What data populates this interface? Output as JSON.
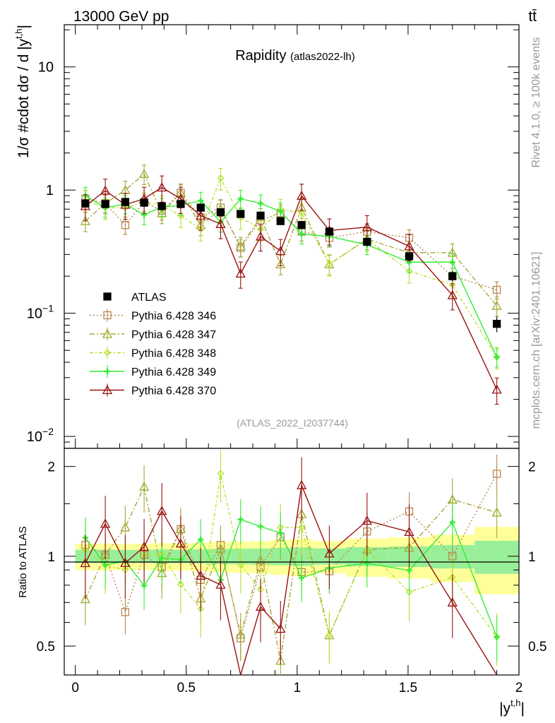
{
  "header": {
    "left": "13000 GeV pp",
    "right": "tt̄"
  },
  "side": {
    "rivet": "Rivet 4.1.0, ≥ 100k events",
    "mcplots": "mcplots.cern.ch [arXiv:2401.10621]"
  },
  "colors": {
    "ATLAS": "#000000",
    "346": "#b8874f",
    "347": "#a3a832",
    "348": "#b5e12e",
    "349": "#33ee33",
    "370": "#991111"
  },
  "chart_data": {
    "type": "line",
    "title": "Rapidity",
    "subtitle": "(atlas2022-lh)",
    "analysis": "(ATLAS_2022_I2037744)",
    "ylabel": "1/σ #cdot dσ / d |y",
    "ylabel_sup": "t,h",
    "ylabel_close": "|",
    "xlabel": "|y",
    "xlabel_sup": "t,h",
    "xlabel_close": "|",
    "ratio_ylabel": "Ratio to ATLAS",
    "xlim": [
      -0.05,
      2.0
    ],
    "ylim": [
      0.008,
      22
    ],
    "yscale": "log",
    "ratio_ylim": [
      0.4,
      2.3
    ],
    "x_ticks": [
      "0",
      "0.5",
      "1",
      "1.5",
      "2"
    ],
    "y_ticks": [
      {
        "base": "10",
        "exp": "−2"
      },
      {
        "base": "10",
        "exp": "−1"
      },
      {
        "base": "1",
        "exp": ""
      },
      {
        "base": "10",
        "exp": ""
      }
    ],
    "ratio_ticks": [
      "0.5",
      "1",
      "2"
    ],
    "bins": [
      0.0,
      0.09,
      0.18,
      0.27,
      0.35,
      0.43,
      0.52,
      0.61,
      0.7,
      0.79,
      0.88,
      0.97,
      1.07,
      1.22,
      1.41,
      1.6,
      1.8,
      2.0
    ],
    "x": [
      0.045,
      0.135,
      0.225,
      0.31,
      0.39,
      0.475,
      0.565,
      0.655,
      0.745,
      0.835,
      0.925,
      1.02,
      1.145,
      1.315,
      1.505,
      1.7,
      1.9
    ],
    "data": {
      "name": "ATLAS",
      "values": [
        0.78,
        0.77,
        0.8,
        0.79,
        0.74,
        0.77,
        0.72,
        0.66,
        0.64,
        0.62,
        0.56,
        0.52,
        0.46,
        0.38,
        0.29,
        0.2,
        0.082
      ],
      "errors": [
        0.04,
        0.04,
        0.04,
        0.04,
        0.04,
        0.04,
        0.04,
        0.04,
        0.04,
        0.04,
        0.04,
        0.04,
        0.03,
        0.03,
        0.025,
        0.02,
        0.012
      ]
    },
    "series": [
      {
        "name": "Pythia 6.428 346",
        "key": "346",
        "marker": "square",
        "dash": "2,3",
        "values": [
          0.85,
          0.78,
          0.52,
          0.8,
          0.68,
          0.95,
          0.6,
          0.72,
          0.34,
          0.57,
          0.65,
          0.46,
          0.41,
          0.46,
          0.41,
          0.2,
          0.155
        ],
        "err_frac": 0.16
      },
      {
        "name": "Pythia 6.428 347",
        "key": "347",
        "marker": "triangle",
        "dash": "7,3,2,3",
        "values": [
          0.56,
          0.78,
          1.0,
          1.35,
          0.65,
          0.95,
          0.52,
          0.7,
          0.35,
          0.6,
          0.25,
          0.72,
          0.25,
          0.4,
          0.31,
          0.31,
          0.115
        ],
        "err_frac": 0.18
      },
      {
        "name": "Pythia 6.428 348",
        "key": "348",
        "marker": "diamond",
        "dash": "5,3,2,3",
        "values": [
          0.82,
          0.72,
          0.72,
          0.8,
          0.75,
          0.62,
          0.48,
          1.25,
          0.6,
          0.48,
          0.7,
          0.65,
          0.25,
          0.4,
          0.22,
          0.17,
          0.044
        ],
        "err_frac": 0.2
      },
      {
        "name": "Pythia 6.428 349",
        "key": "349",
        "marker": "cross",
        "dash": "",
        "values": [
          0.9,
          0.72,
          0.77,
          0.63,
          0.73,
          0.75,
          0.82,
          0.55,
          0.85,
          0.78,
          0.67,
          0.44,
          0.42,
          0.36,
          0.26,
          0.26,
          0.044
        ],
        "err_frac": 0.17
      },
      {
        "name": "Pythia 6.428 370",
        "key": "370",
        "marker": "triangle",
        "dash": "",
        "values": [
          0.74,
          0.99,
          0.76,
          0.85,
          1.05,
          0.85,
          0.62,
          0.53,
          0.21,
          0.42,
          0.32,
          0.9,
          0.47,
          0.5,
          0.35,
          0.14,
          0.024
        ],
        "err_frac": 0.24
      }
    ],
    "legend_position": "middle-left"
  }
}
